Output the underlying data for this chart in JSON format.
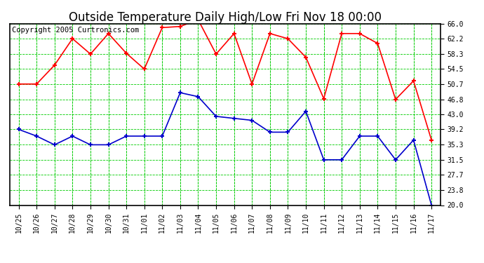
{
  "title": "Outside Temperature Daily High/Low Fri Nov 18 00:00",
  "copyright": "Copyright 2005 Curtronics.com",
  "x_labels": [
    "10/25",
    "10/26",
    "10/27",
    "10/28",
    "10/29",
    "10/30",
    "10/31",
    "11/01",
    "11/02",
    "11/03",
    "11/04",
    "11/05",
    "11/06",
    "11/07",
    "11/08",
    "11/09",
    "11/10",
    "11/11",
    "11/12",
    "11/13",
    "11/14",
    "11/15",
    "11/16",
    "11/17"
  ],
  "high_values": [
    50.7,
    50.7,
    55.5,
    62.2,
    58.3,
    63.5,
    58.5,
    54.5,
    65.0,
    65.3,
    67.0,
    58.3,
    63.5,
    50.7,
    63.5,
    62.2,
    57.5,
    47.0,
    63.5,
    63.5,
    61.0,
    46.8,
    51.5,
    36.5
  ],
  "low_values": [
    39.2,
    37.5,
    35.3,
    37.5,
    35.3,
    35.3,
    37.5,
    37.5,
    37.5,
    48.5,
    47.5,
    42.5,
    42.0,
    41.5,
    38.5,
    38.5,
    43.8,
    31.5,
    31.5,
    37.5,
    37.5,
    31.5,
    36.5,
    20.0
  ],
  "high_color": "#ff0000",
  "low_color": "#0000cc",
  "marker": "+",
  "marker_size": 5,
  "marker_edge_width": 1.5,
  "line_width": 1.2,
  "bg_color": "#ffffff",
  "grid_color": "#00cc00",
  "plot_bg": "#ffffff",
  "border_color": "#000000",
  "ylim": [
    20.0,
    66.0
  ],
  "yticks": [
    20.0,
    23.8,
    27.7,
    31.5,
    35.3,
    39.2,
    43.0,
    46.8,
    50.7,
    54.5,
    58.3,
    62.2,
    66.0
  ],
  "title_fontsize": 12,
  "tick_fontsize": 7,
  "copyright_fontsize": 7.5
}
